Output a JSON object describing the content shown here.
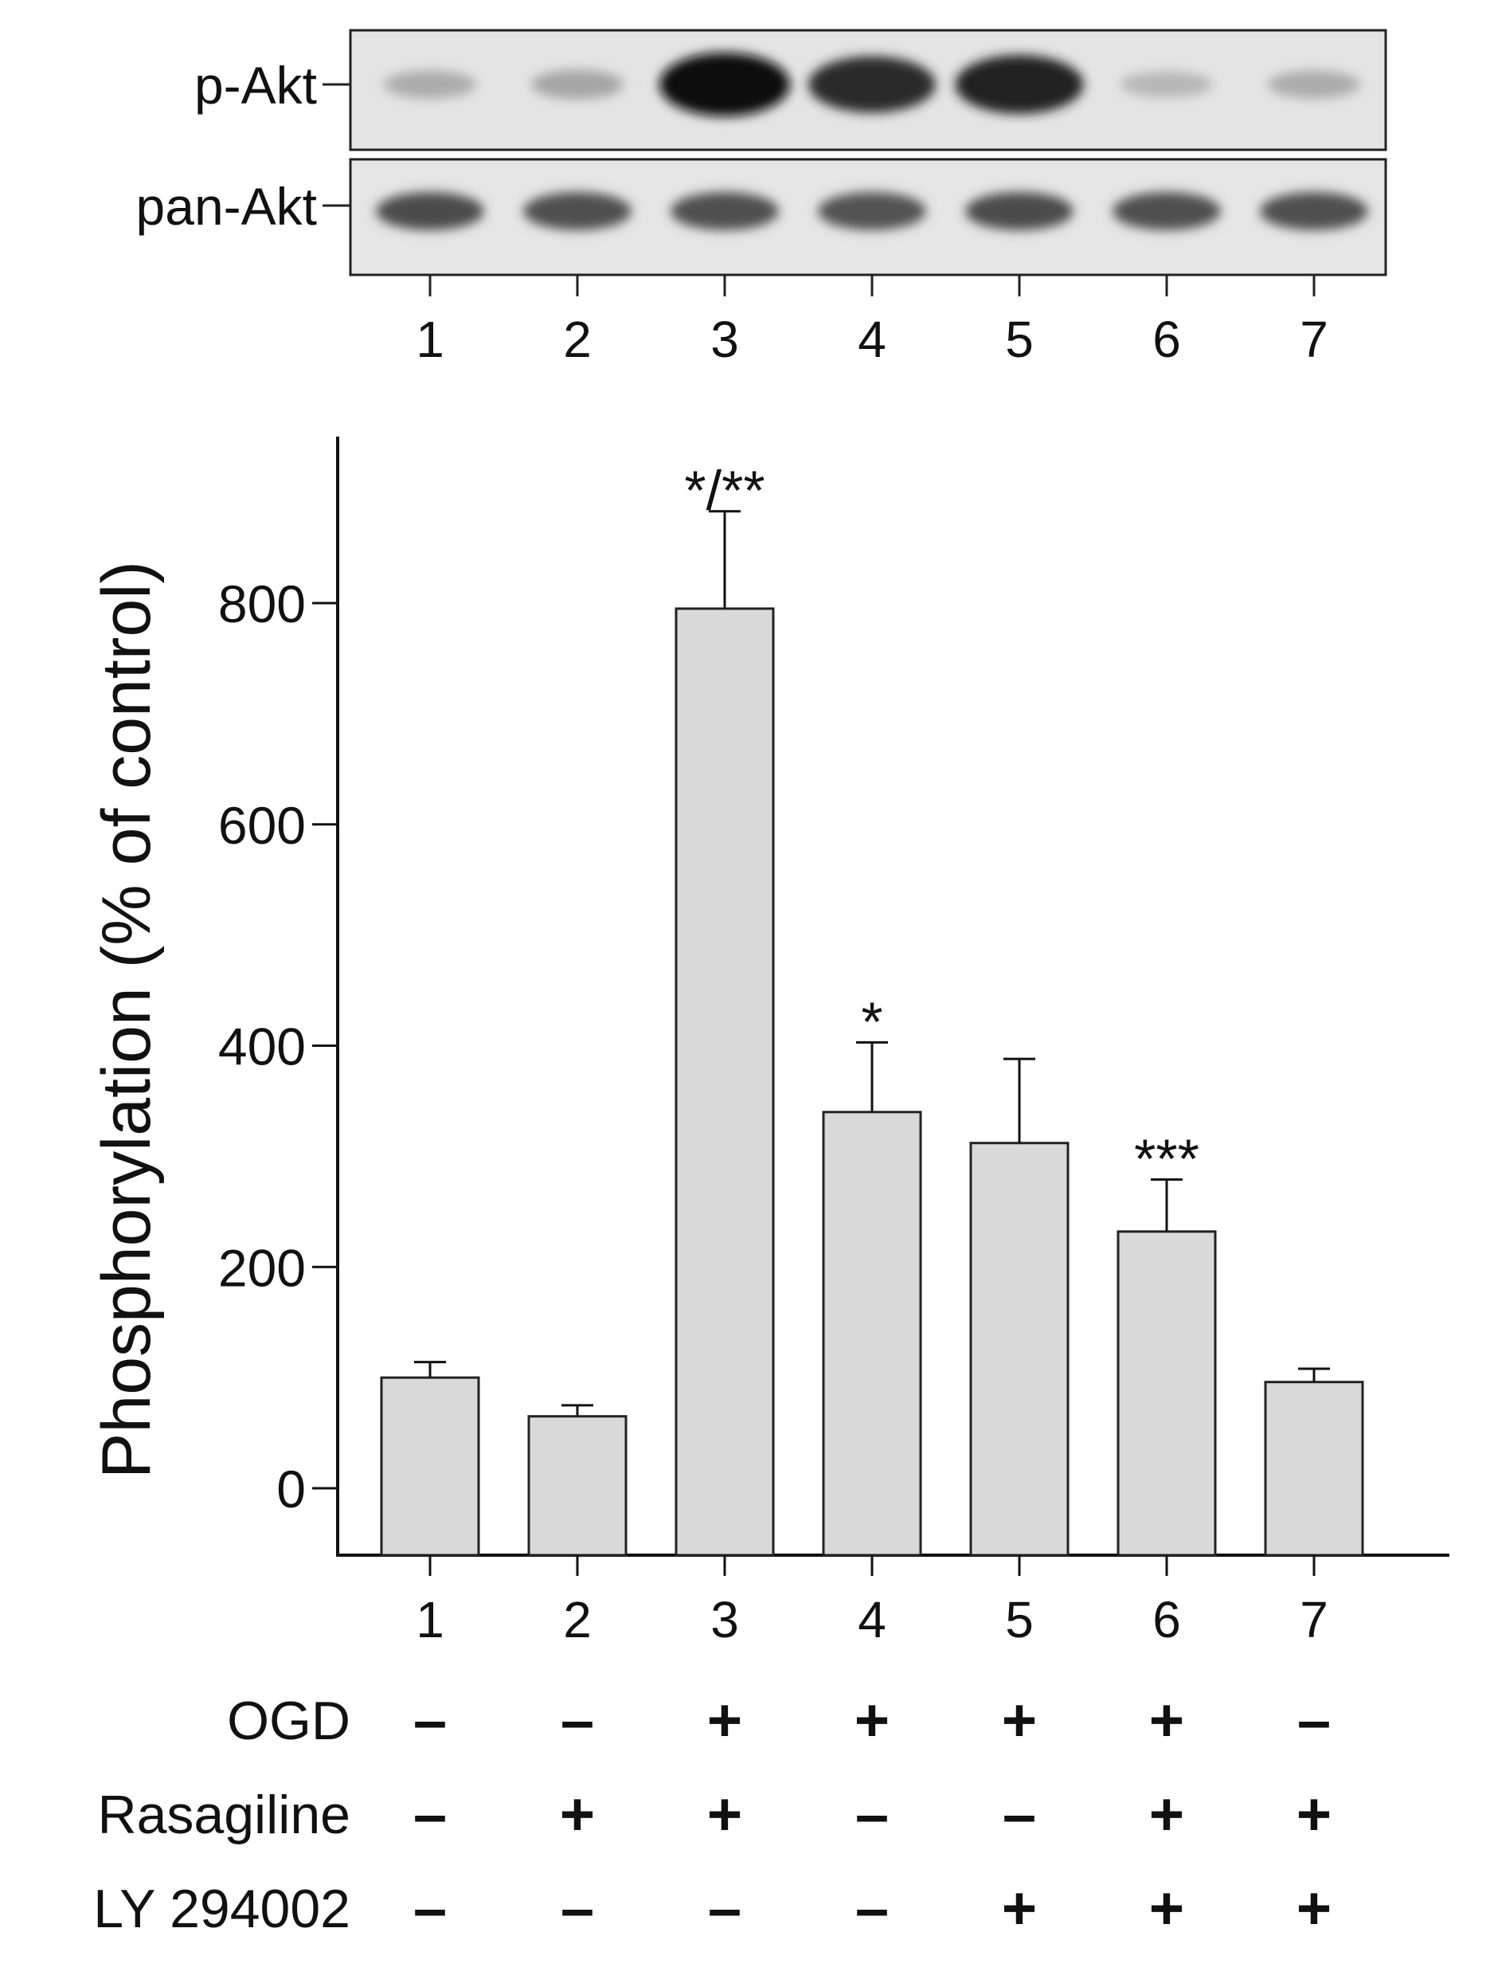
{
  "blot": {
    "rows": [
      {
        "label": "p-Akt",
        "intensity": [
          0.25,
          0.28,
          1.0,
          0.85,
          0.9,
          0.2,
          0.25
        ]
      },
      {
        "label": "pan-Akt",
        "intensity": [
          0.7,
          0.68,
          0.68,
          0.66,
          0.7,
          0.68,
          0.68
        ]
      }
    ],
    "lane_labels": [
      "1",
      "2",
      "3",
      "4",
      "5",
      "6",
      "7"
    ]
  },
  "chart_data": {
    "type": "bar",
    "categories": [
      "1",
      "2",
      "3",
      "4",
      "5",
      "6",
      "7"
    ],
    "values": [
      100,
      65,
      795,
      340,
      312,
      232,
      96
    ],
    "errors": [
      14,
      10,
      88,
      63,
      76,
      47,
      12
    ],
    "significance": [
      "",
      "",
      "*/**",
      "*",
      "",
      "***",
      ""
    ],
    "title": "",
    "xlabel": "",
    "ylabel": "Phosphorylation (% of control)",
    "ylim": [
      -55,
      950
    ],
    "yticks": [
      0,
      200,
      400,
      600,
      800
    ],
    "grid": false,
    "bar_color": "#d9d9d9",
    "edge_color": "#222222"
  },
  "treatments": [
    {
      "label": "OGD",
      "values": [
        "–",
        "–",
        "+",
        "+",
        "+",
        "+",
        "–"
      ]
    },
    {
      "label": "Rasagiline",
      "values": [
        "–",
        "+",
        "+",
        "–",
        "–",
        "+",
        "+"
      ]
    },
    {
      "label": "LY 294002",
      "values": [
        "–",
        "–",
        "–",
        "–",
        "+",
        "+",
        "+"
      ]
    }
  ]
}
